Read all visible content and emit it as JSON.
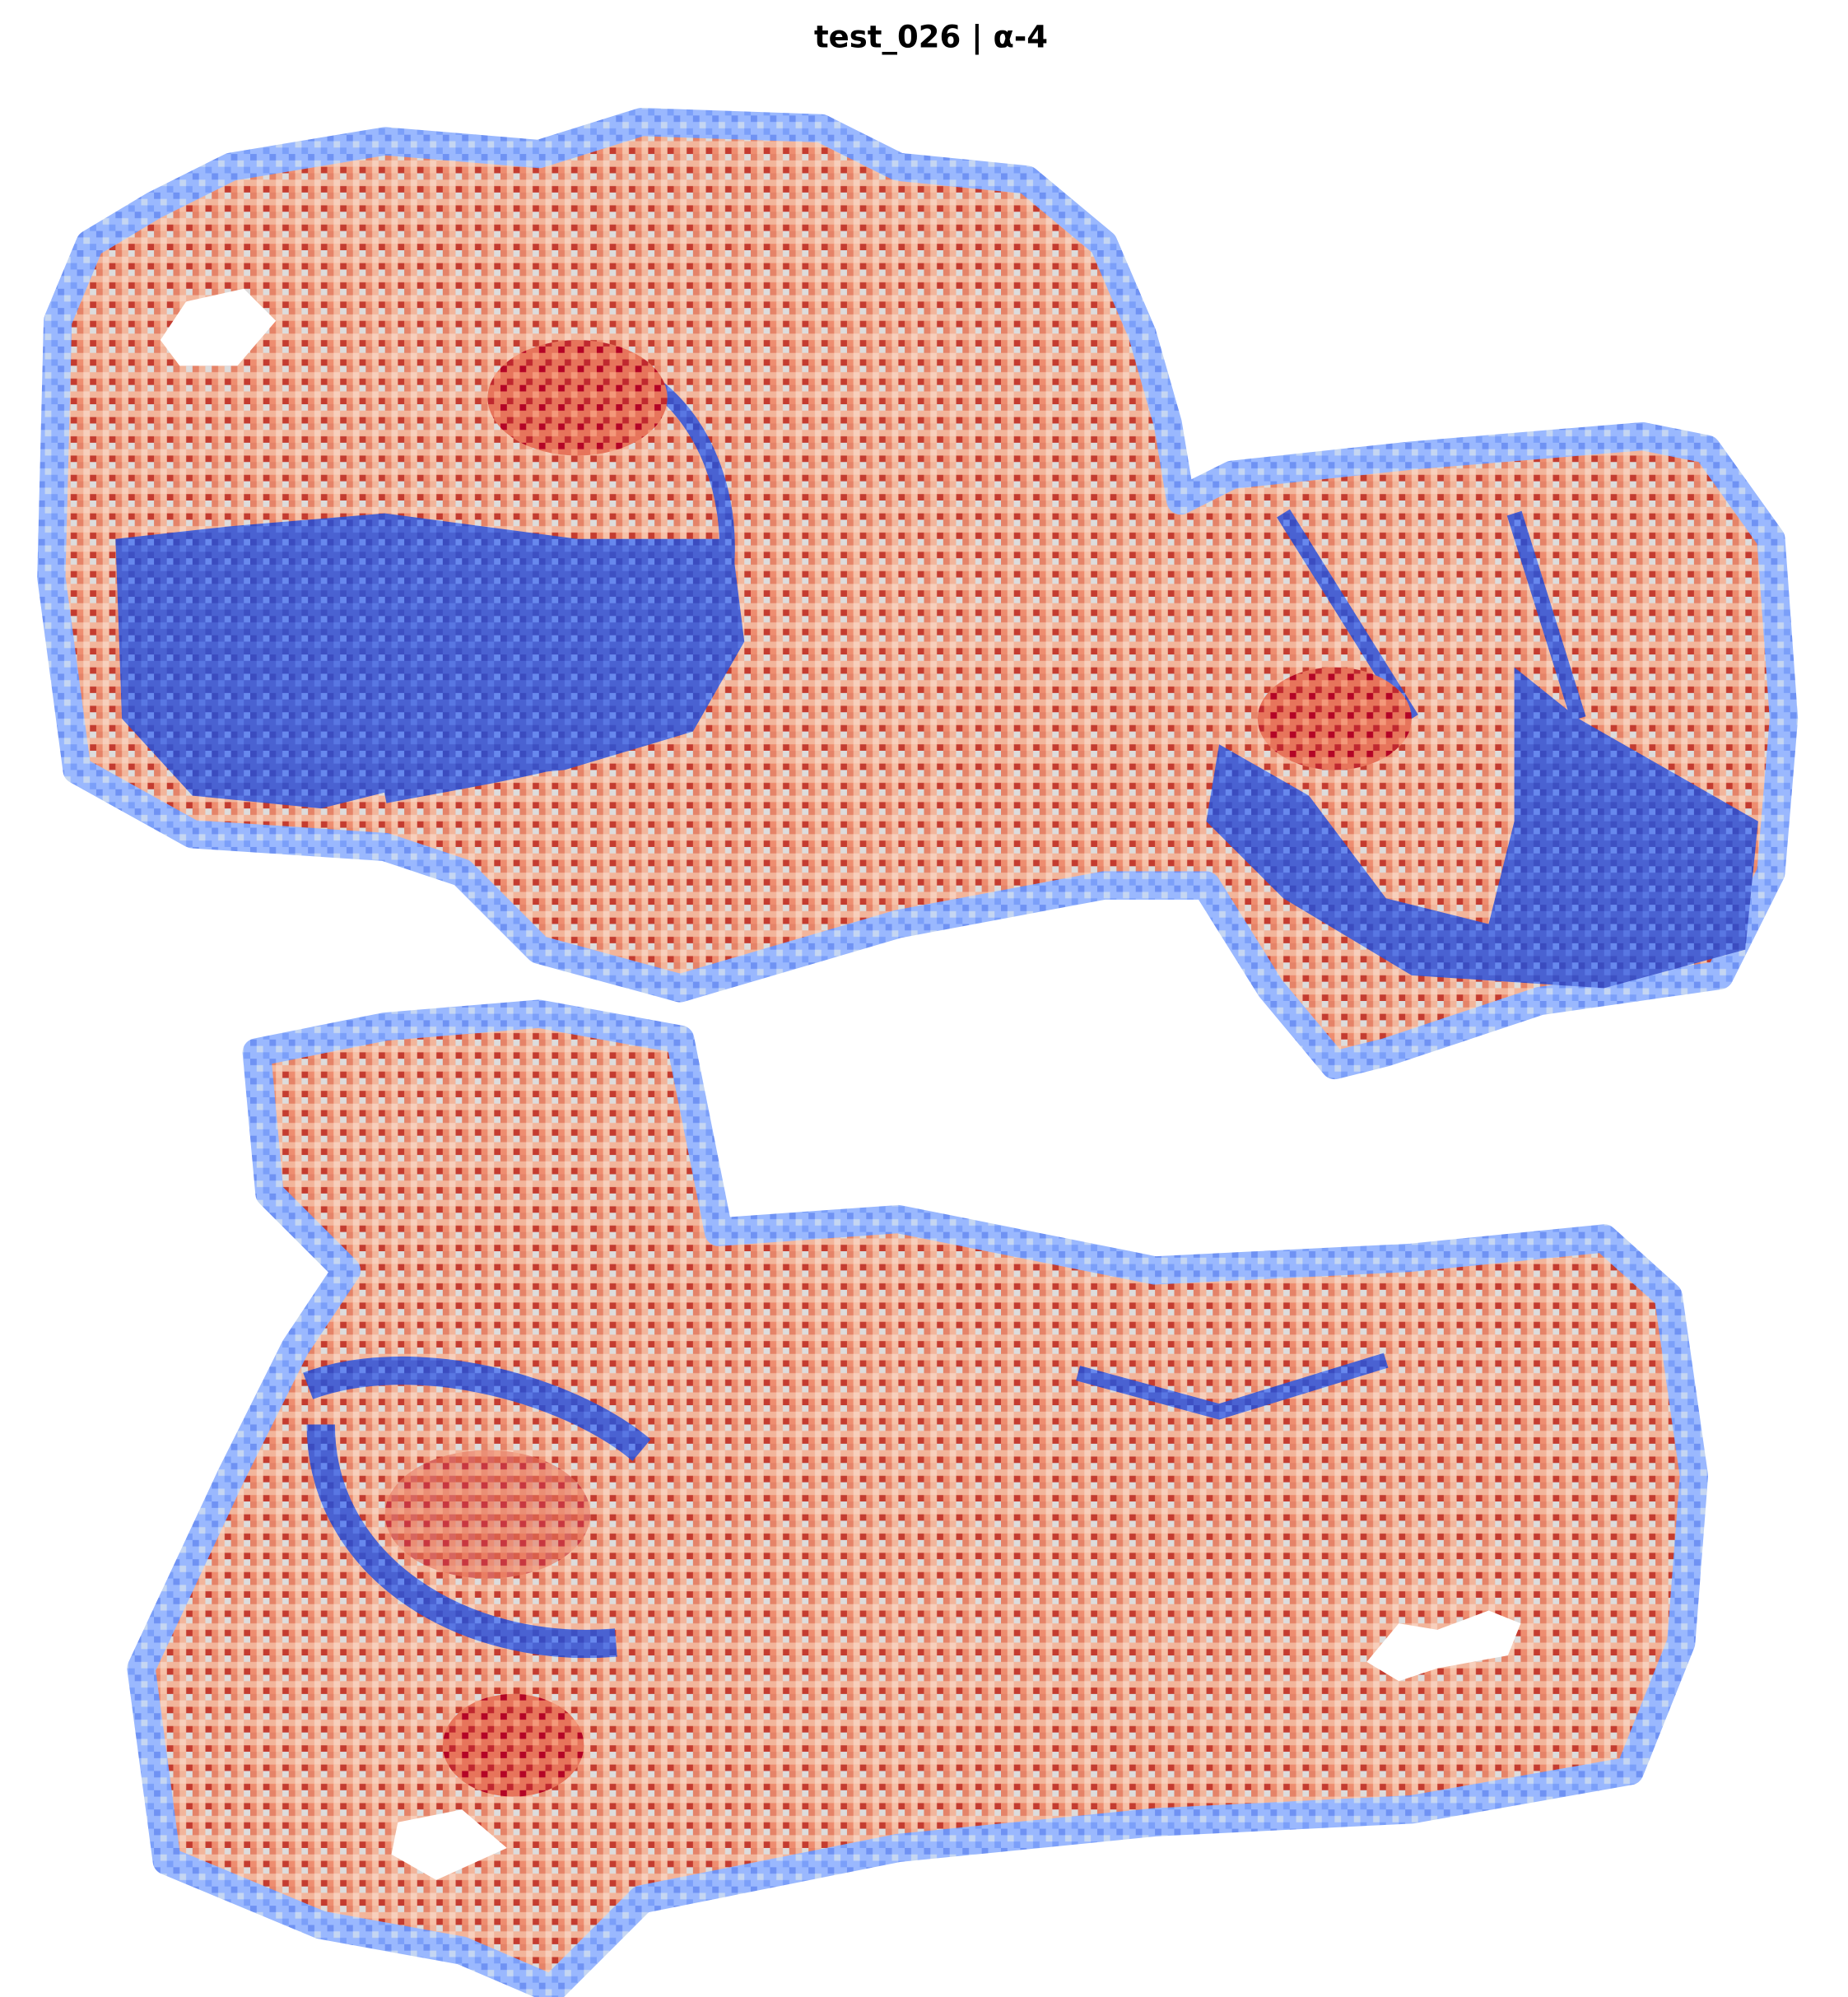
{
  "chart_data": {
    "type": "spatial",
    "title": "test_026 | α-4"
  }
}
